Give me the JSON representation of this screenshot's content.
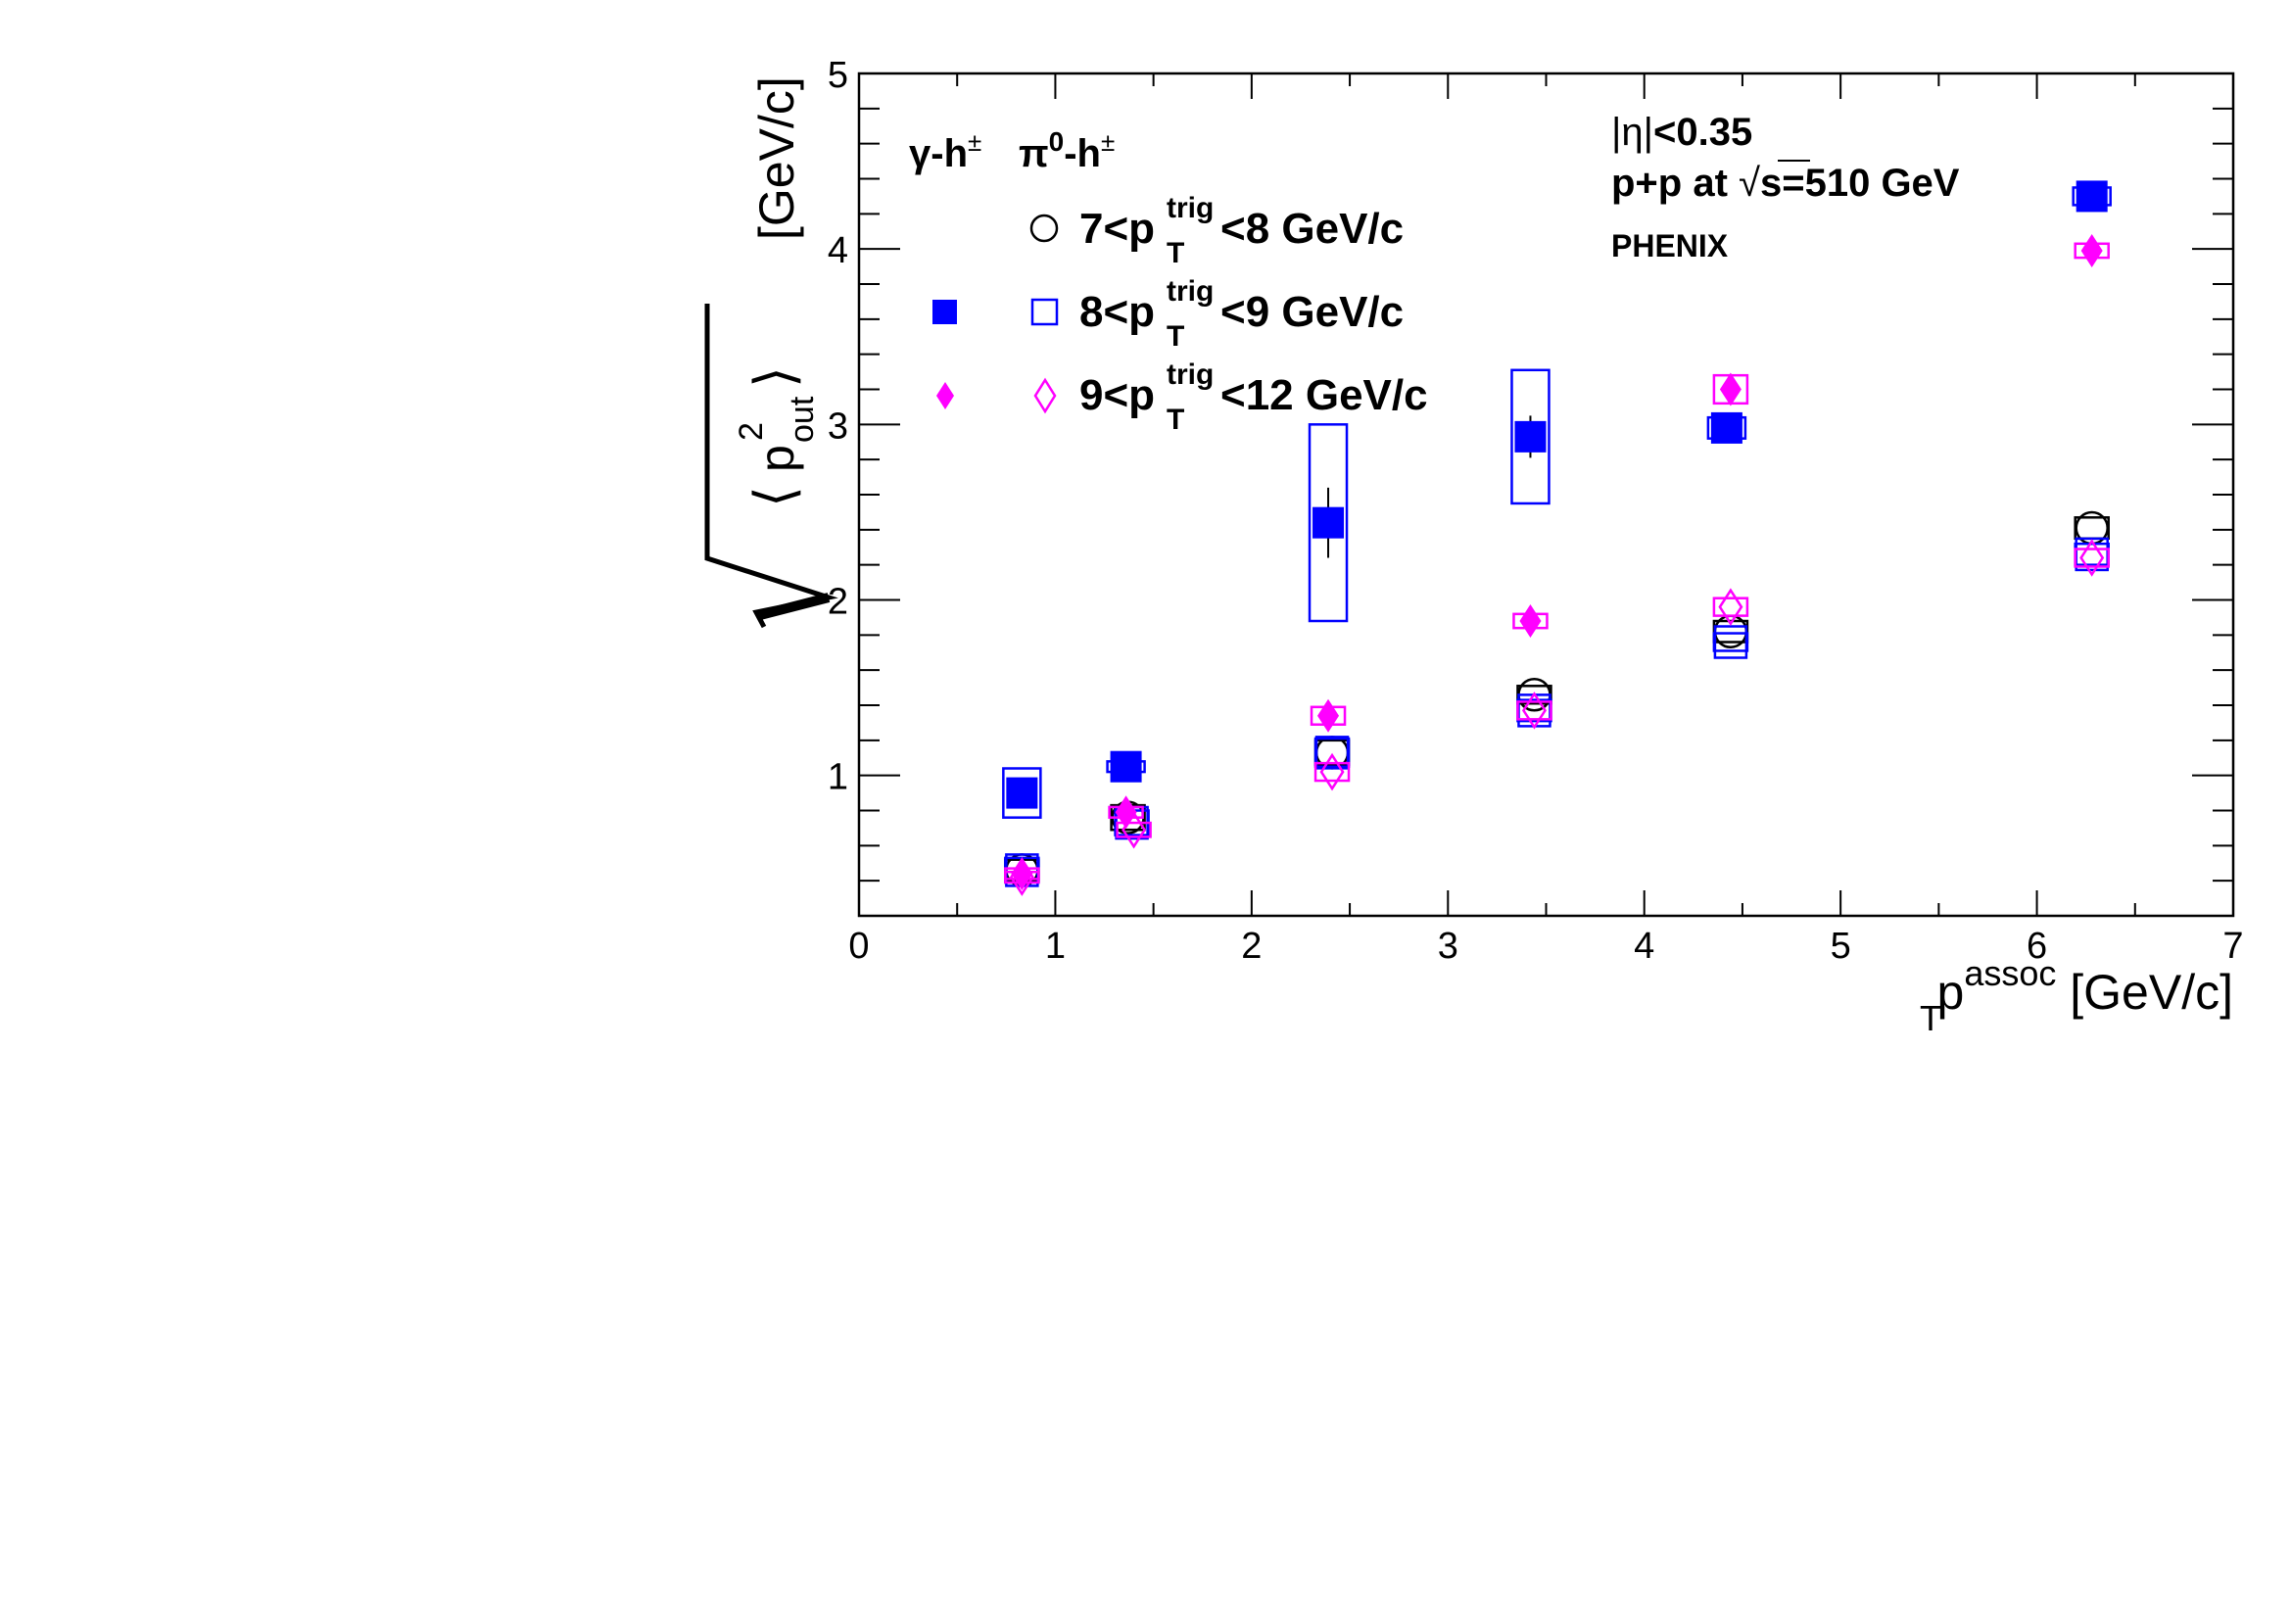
{
  "chart_data": {
    "type": "scatter",
    "xlim": [
      0,
      7
    ],
    "ylim": [
      0.2,
      5
    ],
    "x_ticks": [
      "0",
      "1",
      "2",
      "3",
      "4",
      "5",
      "6",
      "7"
    ],
    "y_ticks": [
      "1",
      "2",
      "3",
      "4",
      "5"
    ],
    "xlabel": {
      "base": "p",
      "sub": "T",
      "sup": "assoc",
      "unit": " [GeV/c]"
    },
    "ylabel": {
      "unit": "[GeV/c]",
      "p": "p",
      "sub": "out",
      "sup": "2"
    },
    "legend": {
      "col_header_gamma": "γ-h",
      "col_header_pi": "π",
      "pi_sup": "0",
      "h_suffix": "-h",
      "charge": "±",
      "rows": [
        {
          "prefix": "7<p",
          "sup": "trig",
          "sub": "T",
          "suffix": "<8 GeV/c"
        },
        {
          "prefix": "8<p",
          "sup": "trig",
          "sub": "T",
          "suffix": "<9 GeV/c"
        },
        {
          "prefix": "9<p",
          "sup": "trig",
          "sub": "T",
          "suffix": "<12 GeV/c"
        }
      ]
    },
    "annotations": {
      "eta_a": "|η|",
      "eta_b": "<0.35",
      "system_a": "p+p at ",
      "sqrt": "√",
      "system_b": "s=510 GeV",
      "experiment": "PHENIX"
    },
    "colors": {
      "black": "#000000",
      "blue": "#0000ff",
      "magenta": "#ff00ff"
    },
    "series": [
      {
        "marker": "open-circle",
        "color": "#000000",
        "x": [
          0.83,
          1.37,
          2.41,
          3.44,
          4.44,
          6.28
        ],
        "y": [
          0.46,
          0.76,
          1.13,
          1.46,
          1.82,
          2.41
        ],
        "sys": [
          0.06,
          0.07,
          0.07,
          0.05,
          0.06,
          0.06
        ]
      },
      {
        "marker": "filled-square",
        "color": "#0000ff",
        "x": [
          0.83,
          1.36,
          2.39,
          3.42,
          4.42,
          6.28
        ],
        "y": [
          0.9,
          1.05,
          2.44,
          2.93,
          2.98,
          4.3
        ],
        "stat": [
          0.08,
          0.04,
          0.2,
          0.12,
          0.05,
          0.04
        ],
        "sys": [
          0.14,
          0.03,
          0.56,
          0.38,
          0.06,
          0.05
        ]
      },
      {
        "marker": "open-square",
        "color": "#0000ff",
        "x": [
          0.83,
          1.39,
          2.41,
          3.44,
          4.44,
          6.28
        ],
        "y": [
          0.46,
          0.73,
          1.13,
          1.37,
          1.76,
          2.26
        ],
        "sys": [
          0.07,
          0.07,
          0.08,
          0.06,
          0.05,
          0.06
        ]
      },
      {
        "marker": "filled-diamond",
        "color": "#ff00ff",
        "x": [
          0.83,
          1.36,
          2.39,
          3.42,
          4.44,
          6.28
        ],
        "y": [
          0.44,
          0.79,
          1.34,
          1.88,
          3.2,
          3.99
        ],
        "sys": [
          0.03,
          0.03,
          0.05,
          0.04,
          0.08,
          0.04
        ]
      },
      {
        "marker": "open-diamond",
        "color": "#ff00ff",
        "x": [
          0.83,
          1.4,
          2.41,
          3.44,
          4.44,
          6.28
        ],
        "y": [
          0.42,
          0.69,
          1.02,
          1.37,
          1.96,
          2.24
        ],
        "sys": [
          0.03,
          0.04,
          0.05,
          0.05,
          0.05,
          0.05
        ]
      }
    ]
  }
}
